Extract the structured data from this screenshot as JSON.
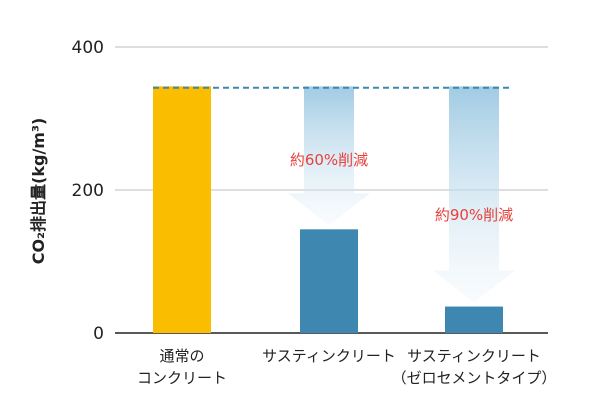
{
  "chart_data": {
    "type": "bar",
    "ylabel": "CO₂排出量(kg/m³)",
    "ylim": [
      0,
      400
    ],
    "yticks": [
      0,
      200,
      400
    ],
    "categories": [
      [
        "通常の",
        "コンクリート"
      ],
      [
        "サスティンクリート"
      ],
      [
        "サスティンクリート",
        "（ゼロセメントタイプ）"
      ]
    ],
    "values": [
      345,
      145,
      37
    ],
    "bar_colors": [
      "#fbbd00",
      "#3d87b1",
      "#3d87b1"
    ],
    "reference_line": {
      "value": 343,
      "style": "dashed",
      "color": "#3d87b1"
    },
    "annotations": [
      {
        "text": "約60%削減",
        "category_index": 1,
        "from": 345,
        "to": 145
      },
      {
        "text": "約90%削減",
        "category_index": 2,
        "from": 345,
        "to": 37
      }
    ],
    "grid": true,
    "gridline_color": "#bdbdbd",
    "arrow_color": "#9cc8e2"
  }
}
